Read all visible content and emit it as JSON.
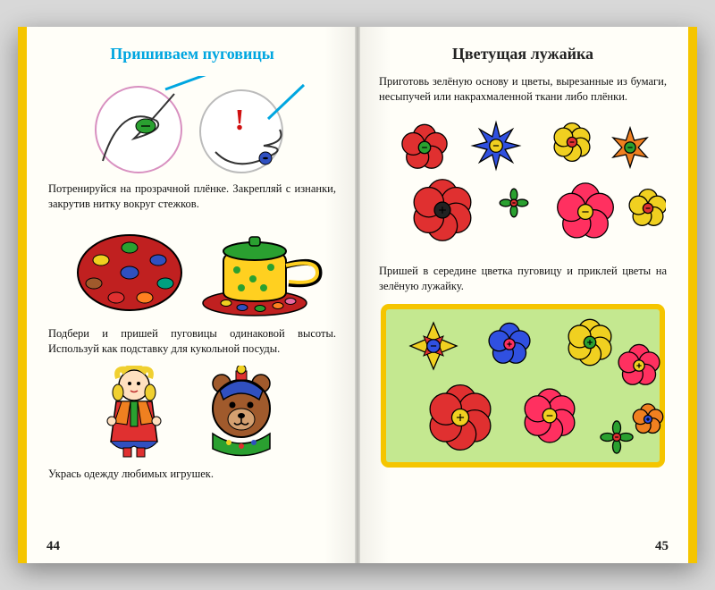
{
  "left": {
    "title": "Пришиваем пуговицы",
    "text1": "Потренируйся на прозрачной плёнке. Закрепляй с изнанки, закрутив нитку вокруг стежков.",
    "text2": "Подбери и пришей пуговицы одинаковой высоты. Используй как подставку для кукольной посуды.",
    "text3": "Укрась одежду любимых игрушек.",
    "page_num": "44",
    "colors": {
      "title": "#00a6e0",
      "needle": "#00a6e0",
      "thread": "#333333",
      "plate": "#c02020",
      "pot_body": "#ffd020",
      "pot_lid": "#2aa030",
      "doll_dress": "#e03030",
      "doll_vest": "#f08020",
      "doll_hair": "#f0d030",
      "bear": "#a05a2c",
      "bear_cap": "#3050c0",
      "warning": "#d01010"
    },
    "button_colors": [
      "#2aa030",
      "#f0d020",
      "#3050c0",
      "#e03030",
      "#a05a2c",
      "#e86aa0",
      "#00a080",
      "#ff8020"
    ]
  },
  "right": {
    "title": "Цветущая лужайка",
    "text1": "Приготовь зелёную основу и цветы, вырезанные из бумаги, несыпучей или накрахмаленной ткани либо плёнки.",
    "text2": "Пришей в середине цветка пуговицу и приклей цветы на зелёную лужайку.",
    "page_num": "45",
    "meadow_bg": "#c4e890",
    "meadow_border": "#f5c500",
    "flowers_top": [
      {
        "petals": "#e03030",
        "center": "#2aa030",
        "shape": "round5"
      },
      {
        "petals": "#3050e0",
        "center": "#f0d020",
        "shape": "pointy8"
      },
      {
        "petals": "#f0d020",
        "center": "#e03030",
        "shape": "round6"
      },
      {
        "petals": "#f08020",
        "center": "#2aa030",
        "shape": "pointy6"
      },
      {
        "petals": "#e03030",
        "center": "#222222",
        "shape": "round6"
      },
      {
        "petals": "#2aa030",
        "center": "#e03030",
        "shape": "cross4"
      },
      {
        "petals": "#ff3060",
        "center": "#f0d020",
        "shape": "round5"
      },
      {
        "petals": "#f0d020",
        "center": "#e03030",
        "shape": "round5"
      }
    ],
    "flowers_meadow": [
      {
        "petals": "#f0d020",
        "accent": "#e03030",
        "center": "#3050e0",
        "shape": "pointy4a"
      },
      {
        "petals": "#3050e0",
        "center": "#ff3060",
        "shape": "round5"
      },
      {
        "petals": "#f0d020",
        "center": "#2aa030",
        "shape": "round6"
      },
      {
        "petals": "#ff3060",
        "center": "#f0d020",
        "shape": "round5"
      },
      {
        "petals": "#e03030",
        "center": "#f0d020",
        "shape": "round6"
      },
      {
        "petals": "#ff3060",
        "center": "#f0d020",
        "shape": "round6"
      },
      {
        "petals": "#2aa030",
        "center": "#e03030",
        "shape": "cross4"
      },
      {
        "petals": "#f08020",
        "center": "#3050e0",
        "shape": "round5s"
      }
    ]
  }
}
